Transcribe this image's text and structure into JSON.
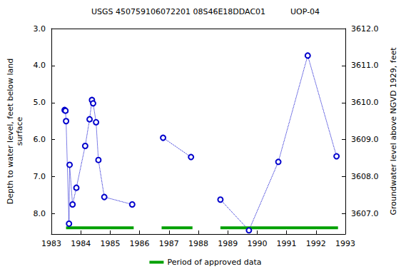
{
  "chart_data": {
    "type": "line",
    "title": "USGS 450759106072201 08S46E18DDAC01          UOP-04",
    "ylabel": "Depth to water level, feet below land\nsurface",
    "y2label": "Groundwater level above NGVD 1929, feet",
    "x": [
      1983.45,
      1983.48,
      1983.5,
      1983.6,
      1983.62,
      1983.72,
      1983.85,
      1984.15,
      1984.3,
      1984.38,
      1984.42,
      1984.52,
      1984.6,
      1984.8,
      1985.75,
      1986.3,
      1986.8,
      1987.75,
      1988.25,
      1988.75,
      1989.72,
      1990.72,
      1991.72,
      1992.7
    ],
    "values": [
      5.2,
      5.22,
      5.5,
      8.27,
      6.68,
      7.75,
      7.3,
      6.17,
      5.45,
      4.93,
      5.02,
      5.53,
      6.55,
      7.55,
      7.75,
      null,
      5.95,
      6.47,
      null,
      7.62,
      8.45,
      6.6,
      3.73,
      6.45
    ],
    "color": "#0000cc",
    "marker": "circle",
    "line_style": "dotted",
    "xlim": [
      1983,
      1993
    ],
    "xticks": [
      1983,
      1984,
      1985,
      1986,
      1987,
      1988,
      1989,
      1990,
      1991,
      1992,
      1993
    ],
    "ylim": [
      3.0,
      8.55
    ],
    "yticks": [
      {
        "value": 3,
        "label": "3.0"
      },
      {
        "value": 4,
        "label": "4.0"
      },
      {
        "value": 5,
        "label": "5.0"
      },
      {
        "value": 6,
        "label": "6.0"
      },
      {
        "value": 7,
        "label": "7.0"
      },
      {
        "value": 8,
        "label": "8.0"
      }
    ],
    "y2lim": [
      3606.45,
      3612.0
    ],
    "y2ticks": [
      {
        "value": 3607,
        "label": "3607.0"
      },
      {
        "value": 3608,
        "label": "3608.0"
      },
      {
        "value": 3609,
        "label": "3609.0"
      },
      {
        "value": 3610,
        "label": "3610.0"
      },
      {
        "value": 3611,
        "label": "3611.0"
      },
      {
        "value": 3612,
        "label": "3612.0"
      }
    ],
    "approved_periods": {
      "name": "Period of approved data",
      "color": "#00a000",
      "ranges": [
        [
          1983.5,
          1985.8
        ],
        [
          1986.75,
          1987.8
        ],
        [
          1988.75,
          1992.75
        ]
      ]
    },
    "legend": "bottom",
    "grid": false
  }
}
